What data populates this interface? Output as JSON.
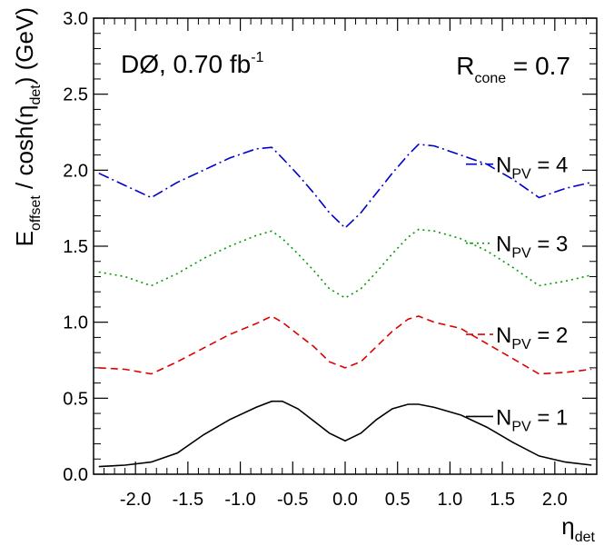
{
  "chart_data": {
    "type": "line",
    "annotations": {
      "left_main": "DØ, 0.70 fb",
      "left_sup": "-1",
      "right_main": "R",
      "right_sub": "cone",
      "right_rest": " = 0.7"
    },
    "xlabel": {
      "main": "η",
      "sub": "det"
    },
    "ylabel": {
      "pre": "E",
      "sub1": "offset",
      "mid": " / cosh(η",
      "sub2": "det",
      "post": ") (GeV)"
    },
    "xlim": [
      -2.4,
      2.4
    ],
    "ylim": [
      0.0,
      3.0
    ],
    "xticks": [
      -2.0,
      -1.5,
      -1.0,
      -0.5,
      0.0,
      0.5,
      1.0,
      1.5,
      2.0
    ],
    "xtick_labels": [
      "-2.0",
      "-1.5",
      "-1.0",
      "-0.5",
      "0.0",
      "0.5",
      "1.0",
      "1.5",
      "2.0"
    ],
    "yticks": [
      0.0,
      0.5,
      1.0,
      1.5,
      2.0,
      2.5,
      3.0
    ],
    "ytick_labels": [
      "0.0",
      "0.5",
      "1.0",
      "1.5",
      "2.0",
      "2.5",
      "3.0"
    ],
    "x": [
      -2.35,
      -2.1,
      -1.85,
      -1.6,
      -1.35,
      -1.1,
      -0.85,
      -0.7,
      -0.6,
      -0.45,
      -0.3,
      -0.15,
      0.0,
      0.15,
      0.3,
      0.45,
      0.6,
      0.7,
      0.85,
      1.1,
      1.35,
      1.6,
      1.85,
      2.1,
      2.35
    ],
    "series": [
      {
        "name": "N",
        "sub": "PV",
        "value_label": " = 4",
        "color": "#0000cc",
        "dash": "12,4,2,4",
        "values": [
          1.98,
          1.9,
          1.82,
          1.92,
          2.0,
          2.08,
          2.14,
          2.15,
          2.08,
          1.97,
          1.85,
          1.72,
          1.62,
          1.72,
          1.85,
          1.98,
          2.1,
          2.17,
          2.16,
          2.1,
          2.04,
          1.94,
          1.82,
          1.88,
          1.92
        ]
      },
      {
        "name": "N",
        "sub": "PV",
        "value_label": " = 3",
        "color": "#009900",
        "dash": "2,4",
        "values": [
          1.33,
          1.3,
          1.24,
          1.32,
          1.42,
          1.5,
          1.57,
          1.6,
          1.55,
          1.45,
          1.34,
          1.22,
          1.16,
          1.22,
          1.33,
          1.45,
          1.56,
          1.61,
          1.6,
          1.55,
          1.47,
          1.36,
          1.24,
          1.27,
          1.31
        ]
      },
      {
        "name": "N",
        "sub": "PV",
        "value_label": " = 2",
        "color": "#dd0000",
        "dash": "8,5",
        "values": [
          0.7,
          0.69,
          0.66,
          0.74,
          0.83,
          0.92,
          0.99,
          1.04,
          1.0,
          0.92,
          0.84,
          0.74,
          0.7,
          0.74,
          0.84,
          0.94,
          1.02,
          1.04,
          1.0,
          0.96,
          0.86,
          0.76,
          0.66,
          0.67,
          0.69
        ]
      },
      {
        "name": "N",
        "sub": "PV",
        "value_label": " = 1",
        "color": "#000000",
        "dash": "",
        "values": [
          0.05,
          0.06,
          0.08,
          0.14,
          0.26,
          0.36,
          0.44,
          0.48,
          0.48,
          0.43,
          0.35,
          0.27,
          0.22,
          0.27,
          0.36,
          0.43,
          0.46,
          0.46,
          0.44,
          0.39,
          0.31,
          0.21,
          0.12,
          0.08,
          0.06
        ]
      }
    ],
    "legend_y": [
      2.04,
      1.52,
      0.92,
      0.38
    ],
    "legend_placement": "right",
    "grid": false
  }
}
